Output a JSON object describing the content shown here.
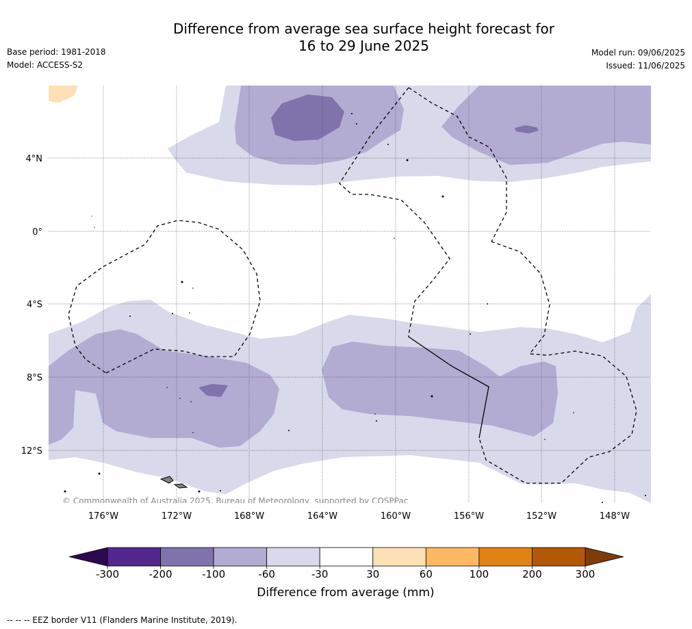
{
  "title_line1": "Difference from average sea surface height forecast for",
  "title_line2": "16 to 29 June 2025",
  "base_period": "Base period: 1981-2018",
  "model": "Model: ACCESS-S2",
  "model_run": "Model run: 09/06/2025",
  "issued": "Issued: 11/06/2025",
  "copyright": "© Commonwealth of Australia 2025, Bureau of Meteorology, supported by COSPPac",
  "footnote": "--  --  -- EEZ border V11 (Flanders Marine Institute, 2019).",
  "longitude_labels": [
    "176°W",
    "172°W",
    "168°W",
    "164°W",
    "160°W",
    "156°W",
    "152°W",
    "148°W"
  ],
  "latitude_labels": [
    "4°N",
    "0°",
    "4°S",
    "8°S",
    "12°S"
  ],
  "colorbar": {
    "title": "Difference from average (mm)",
    "tick_labels": [
      "-300",
      "-200",
      "-100",
      "-60",
      "-30",
      "30",
      "60",
      "100",
      "200",
      "300"
    ],
    "colors": [
      "#2d0a4e",
      "#54278f",
      "#8073ac",
      "#b2abd2",
      "#d8daeb",
      "#ffffff",
      "#fee0b6",
      "#fdb863",
      "#e08214",
      "#b35806",
      "#7f3b08"
    ]
  },
  "legend_colors": {
    "band_minus_30_to_minus_60": "#d8daeb",
    "band_minus_60_to_minus_100": "#b2abd2",
    "band_minus_100_to_minus_200": "#8073ac",
    "band_30_to_60": "#fee0b6",
    "land": "#808080"
  }
}
